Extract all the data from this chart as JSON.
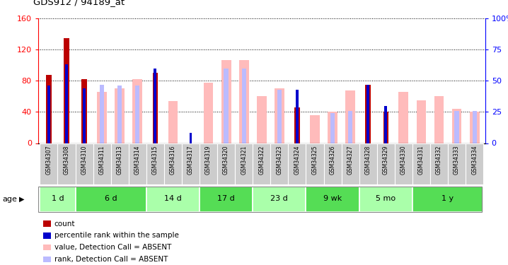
{
  "title": "GDS912 / 94189_at",
  "samples": [
    "GSM34307",
    "GSM34308",
    "GSM34310",
    "GSM34311",
    "GSM34313",
    "GSM34314",
    "GSM34315",
    "GSM34316",
    "GSM34317",
    "GSM34319",
    "GSM34320",
    "GSM34321",
    "GSM34322",
    "GSM34323",
    "GSM34324",
    "GSM34325",
    "GSM34326",
    "GSM34327",
    "GSM34328",
    "GSM34329",
    "GSM34330",
    "GSM34331",
    "GSM34332",
    "GSM34333",
    "GSM34334"
  ],
  "count": [
    88,
    135,
    82,
    0,
    0,
    0,
    90,
    0,
    0,
    0,
    0,
    0,
    0,
    0,
    46,
    0,
    0,
    0,
    75,
    40,
    0,
    0,
    0,
    0,
    0
  ],
  "percentile": [
    46,
    63,
    44,
    0,
    0,
    0,
    60,
    0,
    8,
    0,
    0,
    0,
    0,
    0,
    43,
    0,
    0,
    0,
    47,
    30,
    0,
    0,
    0,
    0,
    0
  ],
  "value_absent": [
    0,
    0,
    0,
    66,
    70,
    82,
    0,
    54,
    0,
    78,
    107,
    107,
    60,
    70,
    0,
    36,
    40,
    68,
    0,
    0,
    66,
    55,
    60,
    44,
    40
  ],
  "rank_absent": [
    0,
    0,
    0,
    47,
    46,
    46,
    0,
    0,
    0,
    0,
    60,
    60,
    0,
    43,
    0,
    0,
    24,
    26,
    0,
    0,
    0,
    0,
    0,
    26,
    26
  ],
  "age_groups": [
    {
      "label": "1 d",
      "samples": [
        "GSM34307",
        "GSM34308"
      ],
      "color": "#aaffaa"
    },
    {
      "label": "6 d",
      "samples": [
        "GSM34310",
        "GSM34311",
        "GSM34313",
        "GSM34314"
      ],
      "color": "#55dd55"
    },
    {
      "label": "14 d",
      "samples": [
        "GSM34315",
        "GSM34316",
        "GSM34317"
      ],
      "color": "#aaffaa"
    },
    {
      "label": "17 d",
      "samples": [
        "GSM34319",
        "GSM34320",
        "GSM34321"
      ],
      "color": "#55dd55"
    },
    {
      "label": "23 d",
      "samples": [
        "GSM34322",
        "GSM34323",
        "GSM34324"
      ],
      "color": "#aaffaa"
    },
    {
      "label": "9 wk",
      "samples": [
        "GSM34325",
        "GSM34326",
        "GSM34327"
      ],
      "color": "#55dd55"
    },
    {
      "label": "5 mo",
      "samples": [
        "GSM34328",
        "GSM34329",
        "GSM34330"
      ],
      "color": "#aaffaa"
    },
    {
      "label": "1 y",
      "samples": [
        "GSM34331",
        "GSM34332",
        "GSM34333",
        "GSM34334"
      ],
      "color": "#55dd55"
    }
  ],
  "ylim_left": [
    0,
    160
  ],
  "ylim_right": [
    0,
    100
  ],
  "yticks_left": [
    0,
    40,
    80,
    120,
    160
  ],
  "yticks_right": [
    0,
    25,
    50,
    75,
    100
  ],
  "color_count": "#bb0000",
  "color_percentile": "#0000cc",
  "color_value_absent": "#ffbbbb",
  "color_rank_absent": "#bbbbff",
  "legend": [
    {
      "label": "count",
      "color": "#bb0000"
    },
    {
      "label": "percentile rank within the sample",
      "color": "#0000cc"
    },
    {
      "label": "value, Detection Call = ABSENT",
      "color": "#ffbbbb"
    },
    {
      "label": "rank, Detection Call = ABSENT",
      "color": "#bbbbff"
    }
  ]
}
